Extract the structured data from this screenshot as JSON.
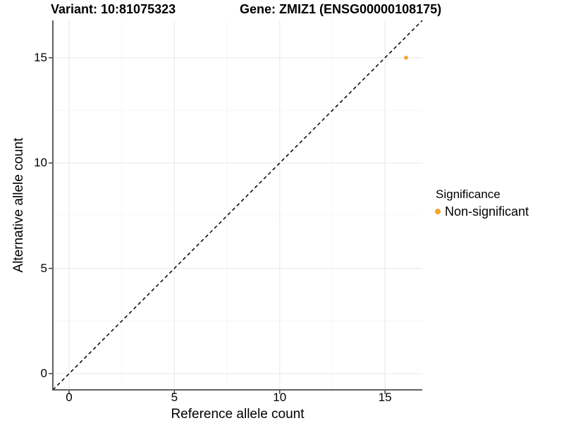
{
  "chart_data": {
    "type": "scatter",
    "title_variant": "Variant: 10:81075323",
    "title_gene": "Gene: ZMIZ1 (ENSG00000108175)",
    "xlabel": "Reference allele count",
    "ylabel": "Alternative allele count",
    "x_ticks": [
      0,
      5,
      10,
      15
    ],
    "y_ticks": [
      0,
      5,
      10,
      15
    ],
    "x_minor_ticks": [
      2.5,
      7.5,
      12.5
    ],
    "y_minor_ticks": [
      2.5,
      7.5,
      12.5
    ],
    "x_range": [
      -0.77,
      16.77
    ],
    "y_range": [
      -0.77,
      16.77
    ],
    "grid": true,
    "points": [
      {
        "x": 16,
        "y": 15,
        "series": "Non-significant"
      }
    ],
    "reference_line": {
      "kind": "identity",
      "slope": 1,
      "intercept": 0,
      "style": "dashed",
      "color": "#000000"
    },
    "legend": {
      "title": "Significance",
      "position": "right",
      "items": [
        {
          "label": "Non-significant",
          "color": "#FBA22B"
        }
      ]
    },
    "colors": {
      "point": "#FBA22B",
      "grid_major": "#ECECEC",
      "grid_minor": "#F6F6F6",
      "axis_line": "#4D4D4D",
      "tick_mark": "#333333",
      "text": "#000000"
    }
  }
}
